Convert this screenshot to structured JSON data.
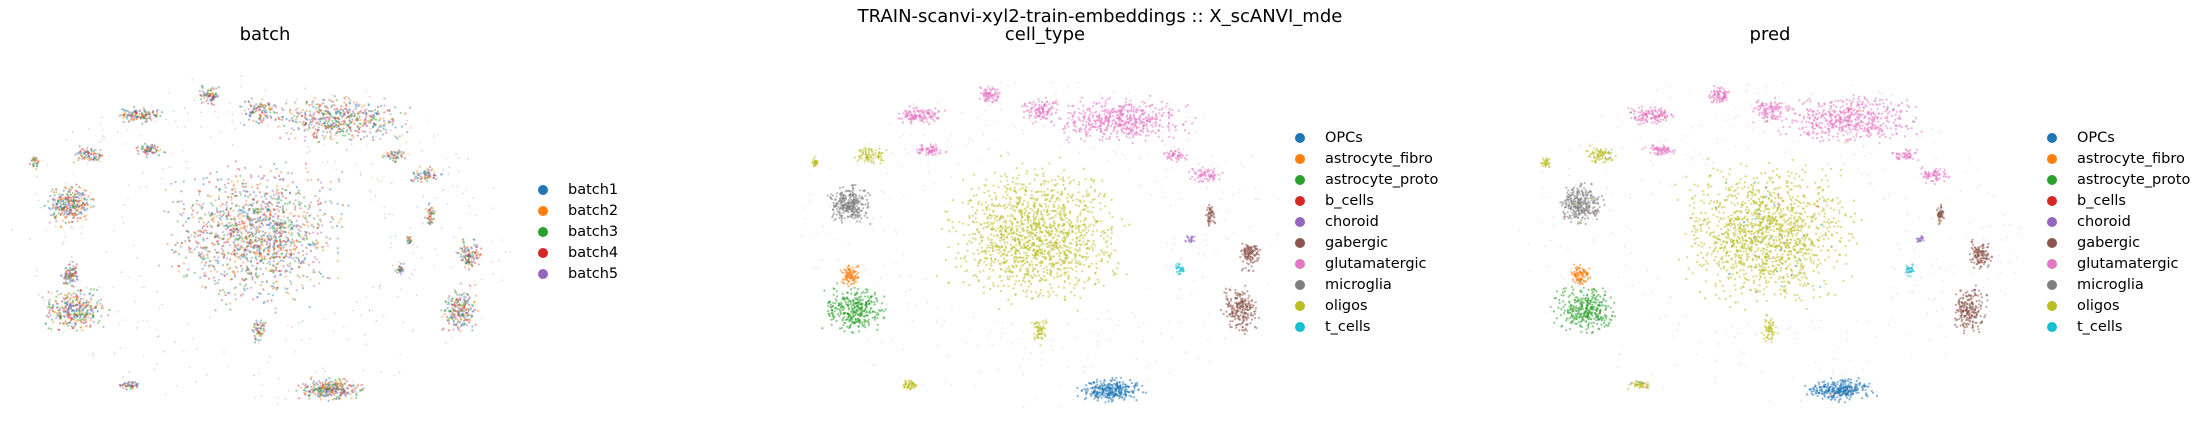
{
  "figure": {
    "title": "TRAIN-scanvi-xyl2-train-embeddings :: X_scANVI_mde"
  },
  "palette": {
    "batch1": "#1f77b4",
    "batch2": "#ff7f0e",
    "batch3": "#2ca02c",
    "batch4": "#d62728",
    "batch5": "#9467bd",
    "OPCs": "#1f77b4",
    "astrocyte_fibro": "#ff7f0e",
    "astrocyte_proto": "#2ca02c",
    "b_cells": "#d62728",
    "choroid": "#9467bd",
    "gabergic": "#8c564b",
    "glutamatergic": "#e377c2",
    "microglia": "#7f7f7f",
    "oligos": "#bcbd22",
    "t_cells": "#17becf"
  },
  "chart_data": [
    {
      "type": "scatter",
      "title": "batch",
      "color_by": "batch",
      "legend": [
        "batch1",
        "batch2",
        "batch3",
        "batch4",
        "batch5"
      ],
      "legend_placement": "right",
      "axes": "off"
    },
    {
      "type": "scatter",
      "title": "cell_type",
      "color_by": "cell_type",
      "legend": [
        "OPCs",
        "astrocyte_fibro",
        "astrocyte_proto",
        "b_cells",
        "choroid",
        "gabergic",
        "glutamatergic",
        "microglia",
        "oligos",
        "t_cells"
      ],
      "legend_placement": "right",
      "axes": "off"
    },
    {
      "type": "scatter",
      "title": "pred",
      "color_by": "pred",
      "legend": [
        "OPCs",
        "astrocyte_fibro",
        "astrocyte_proto",
        "b_cells",
        "choroid",
        "gabergic",
        "glutamatergic",
        "microglia",
        "oligos",
        "t_cells"
      ],
      "legend_placement": "right",
      "axes": "off"
    }
  ]
}
